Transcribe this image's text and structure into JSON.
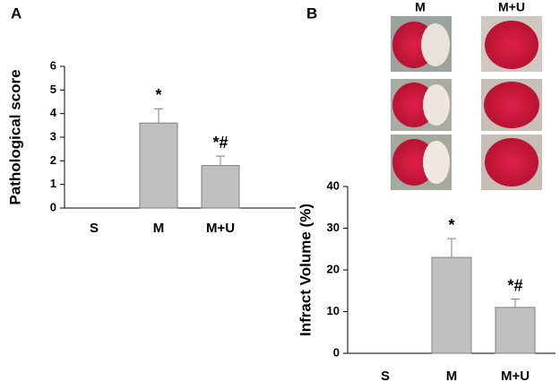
{
  "chart_data": [
    {
      "type": "bar",
      "panel_label": "A",
      "ylabel": "Pathological score",
      "categories": [
        "S",
        "M",
        "M+U"
      ],
      "values": [
        0,
        3.6,
        1.8
      ],
      "errors": [
        null,
        0.6,
        0.4
      ],
      "bar_labels": [
        null,
        "*",
        "*#"
      ],
      "color": "#c0c0c0",
      "ylim": [
        0,
        6
      ],
      "yticks": [
        0,
        1,
        2,
        3,
        4,
        5,
        6
      ]
    },
    {
      "type": "bar",
      "panel_label": "B",
      "ylabel": "Infract Volume (%)",
      "image_labels": [
        "M",
        "M+U"
      ],
      "categories": [
        "S",
        "M",
        "M+U"
      ],
      "values": [
        0,
        23,
        11
      ],
      "errors": [
        null,
        4.5,
        2
      ],
      "bar_labels": [
        null,
        "*",
        "*#"
      ],
      "color": "#c0c0c0",
      "ylim": [
        0,
        40
      ],
      "yticks": [
        0,
        10,
        20,
        30,
        40
      ]
    }
  ]
}
